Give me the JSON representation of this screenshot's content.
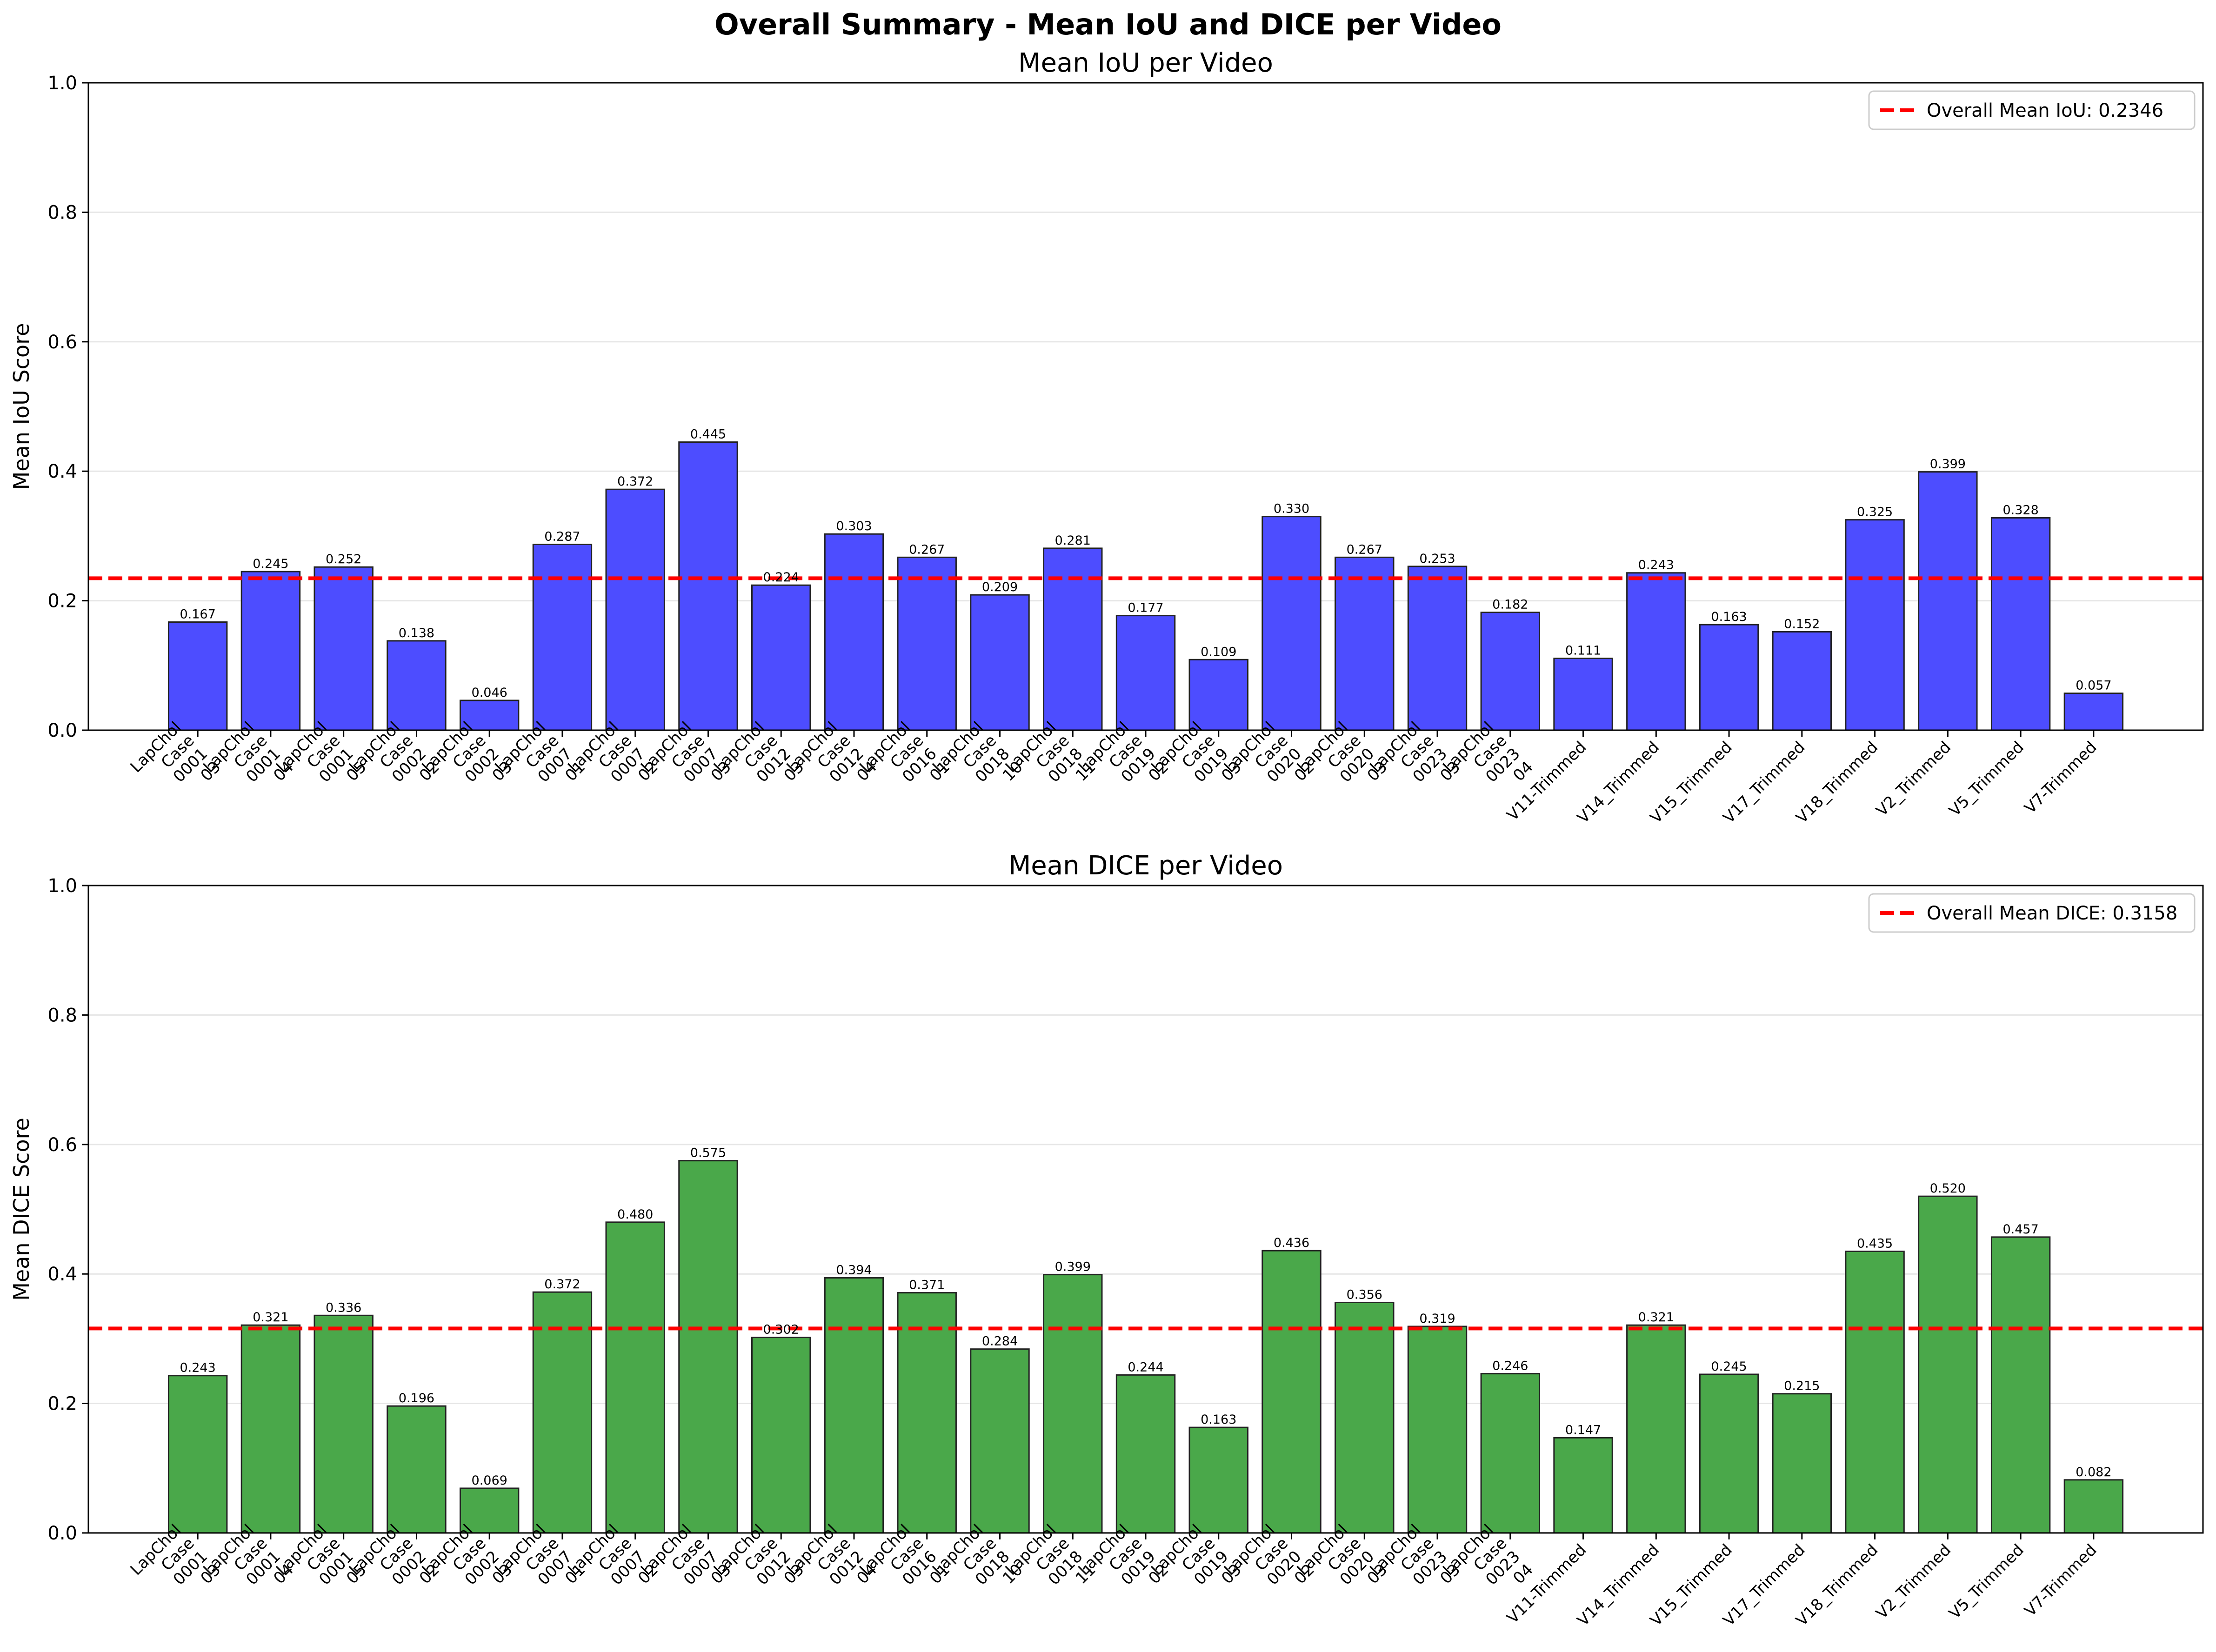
{
  "figure_title": "Overall Summary - Mean IoU and DICE per Video",
  "colors": {
    "iou_bar": "#4d4dff",
    "dice_bar": "#4aa84a",
    "bar_edge": "#222222",
    "mean_line": "#ff0000",
    "grid": "#e6e6e6"
  },
  "chart_data": [
    {
      "type": "bar",
      "title": "Mean IoU per Video",
      "xlabel": "",
      "ylabel": "Mean IoU Score",
      "ylim": [
        0,
        1.0
      ],
      "yticks": [
        "0.0",
        "0.2",
        "0.4",
        "0.6",
        "0.8",
        "1.0"
      ],
      "grid": "y",
      "legend_position": "top-right",
      "categories": [
        "LapChol\nCase\n0001\n03",
        "LapChol\nCase\n0001\n04",
        "LapChol\nCase\n0001\n05",
        "LapChol\nCase\n0002\n02",
        "LapChol\nCase\n0002\n03",
        "LapChol\nCase\n0007\n01",
        "LapChol\nCase\n0007\n02",
        "LapChol\nCase\n0007\n03",
        "LapChol\nCase\n0012\n03",
        "LapChol\nCase\n0012\n04",
        "LapChol\nCase\n0016\n01",
        "LapChol\nCase\n0018\n10",
        "LapChol\nCase\n0018\n11",
        "LapChol\nCase\n0019\n02",
        "LapChol\nCase\n0019\n03",
        "LapChol\nCase\n0020\n02",
        "LapChol\nCase\n0020\n03",
        "LapChol\nCase\n0023\n03",
        "LapChol\nCase\n0023\n04",
        "V11-Trimmed",
        "V14_Trimmed",
        "V15_Trimmed",
        "V17_Trimmed",
        "V18_Trimmed",
        "V2_Trimmed",
        "V5_Trimmed",
        "V7-Trimmed"
      ],
      "x_positions": [
        1,
        2,
        3,
        4,
        5,
        6,
        7,
        8,
        9,
        10,
        11,
        12,
        13,
        14,
        15,
        16,
        17,
        18,
        19,
        20,
        21,
        22,
        23,
        24,
        25,
        26,
        27
      ],
      "xlim": [
        -0.5,
        28.5
      ],
      "values": [
        0.167,
        0.245,
        0.252,
        0.138,
        0.046,
        0.287,
        0.372,
        0.445,
        0.224,
        0.303,
        0.267,
        0.209,
        0.281,
        0.177,
        0.109,
        0.33,
        0.267,
        0.253,
        0.182,
        0.111,
        0.243,
        0.163,
        0.152,
        0.325,
        0.399,
        0.328,
        0.057
      ],
      "value_labels": [
        "0.167",
        "0.245",
        "0.252",
        "0.138",
        "0.046",
        "0.287",
        "0.372",
        "0.445",
        "0.224",
        "0.303",
        "0.267",
        "0.209",
        "0.281",
        "0.177",
        "0.109",
        "0.330",
        "0.267",
        "0.253",
        "0.182",
        "0.111",
        "0.243",
        "0.163",
        "0.152",
        "0.325",
        "0.399",
        "0.328",
        "0.057"
      ],
      "mean_line": {
        "value": 0.2346,
        "label": "Overall Mean IoU: 0.2346"
      },
      "bar_color": "#4d4dff"
    },
    {
      "type": "bar",
      "title": "Mean DICE per Video",
      "xlabel": "",
      "ylabel": "Mean DICE Score",
      "ylim": [
        0,
        1.0
      ],
      "yticks": [
        "0.0",
        "0.2",
        "0.4",
        "0.6",
        "0.8",
        "1.0"
      ],
      "grid": "y",
      "legend_position": "top-right",
      "categories": [
        "LapChol\nCase\n0001\n03",
        "LapChol\nCase\n0001\n04",
        "LapChol\nCase\n0001\n05",
        "LapChol\nCase\n0002\n02",
        "LapChol\nCase\n0002\n03",
        "LapChol\nCase\n0007\n01",
        "LapChol\nCase\n0007\n02",
        "LapChol\nCase\n0007\n03",
        "LapChol\nCase\n0012\n03",
        "LapChol\nCase\n0012\n04",
        "LapChol\nCase\n0016\n01",
        "LapChol\nCase\n0018\n10",
        "LapChol\nCase\n0018\n11",
        "LapChol\nCase\n0019\n02",
        "LapChol\nCase\n0019\n03",
        "LapChol\nCase\n0020\n02",
        "LapChol\nCase\n0020\n03",
        "LapChol\nCase\n0023\n03",
        "LapChol\nCase\n0023\n04",
        "V11-Trimmed",
        "V14_Trimmed",
        "V15_Trimmed",
        "V17_Trimmed",
        "V18_Trimmed",
        "V2_Trimmed",
        "V5_Trimmed",
        "V7-Trimmed"
      ],
      "x_positions": [
        1,
        2,
        3,
        4,
        5,
        6,
        7,
        8,
        9,
        10,
        11,
        12,
        13,
        14,
        15,
        16,
        17,
        18,
        19,
        20,
        21,
        22,
        23,
        24,
        25,
        26,
        27
      ],
      "xlim": [
        -0.5,
        28.5
      ],
      "values": [
        0.243,
        0.321,
        0.336,
        0.196,
        0.069,
        0.372,
        0.48,
        0.575,
        0.302,
        0.394,
        0.371,
        0.284,
        0.399,
        0.244,
        0.163,
        0.436,
        0.356,
        0.319,
        0.246,
        0.147,
        0.321,
        0.245,
        0.215,
        0.435,
        0.52,
        0.457,
        0.082
      ],
      "value_labels": [
        "0.243",
        "0.321",
        "0.336",
        "0.196",
        "0.069",
        "0.372",
        "0.480",
        "0.575",
        "0.302",
        "0.394",
        "0.371",
        "0.284",
        "0.399",
        "0.244",
        "0.163",
        "0.436",
        "0.356",
        "0.319",
        "0.246",
        "0.147",
        "0.321",
        "0.245",
        "0.215",
        "0.435",
        "0.520",
        "0.457",
        "0.082"
      ],
      "mean_line": {
        "value": 0.3158,
        "label": "Overall Mean DICE: 0.3158"
      },
      "bar_color": "#4aa84a"
    }
  ]
}
